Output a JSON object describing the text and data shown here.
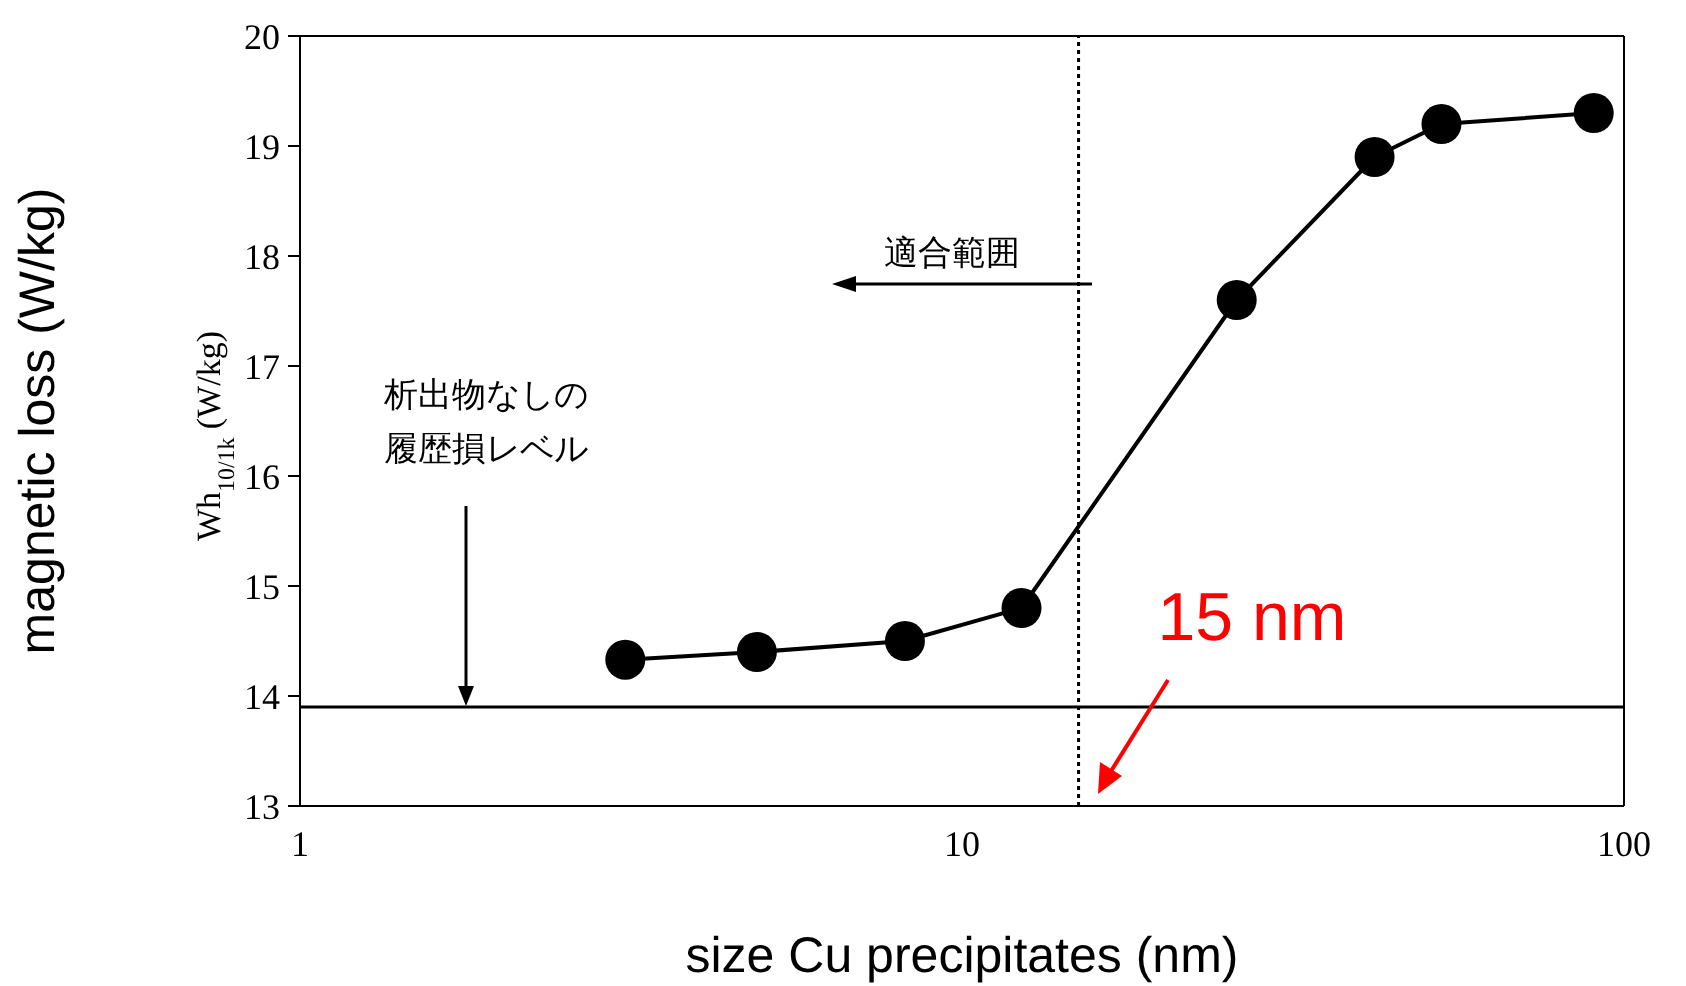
{
  "chart_data": {
    "type": "line",
    "xlabel": "size Cu precipitates (nm)",
    "ylabel": "magnetic loss (W/kg)",
    "log": "x",
    "x": [
      3.1,
      4.9,
      8.2,
      12.3,
      26,
      42,
      53,
      90
    ],
    "series": [
      {
        "color": "#000000",
        "values": [
          14.33,
          14.4,
          14.5,
          14.8,
          17.6,
          18.9,
          19.2,
          19.3
        ]
      }
    ],
    "xlim": [
      1,
      100
    ],
    "xticks": [
      1,
      10,
      100
    ],
    "ylim": [
      13,
      20
    ],
    "yticks": [
      13,
      14,
      15,
      16,
      17,
      18,
      19,
      20
    ],
    "marker": "circle",
    "line_style": "solid",
    "grid": false,
    "ref_lines": [
      {
        "axis": "y",
        "value": 13.9,
        "color": "#000000",
        "line_style": "solid"
      },
      {
        "axis": "x",
        "value": 15,
        "color": "#000000",
        "line_style": "dotted"
      }
    ],
    "annotations": [
      "Wh$_{10/1k}$ (W/kg)",
      "適合範囲",
      "析出物なしの履歴損レベル",
      "15 nm"
    ]
  }
}
